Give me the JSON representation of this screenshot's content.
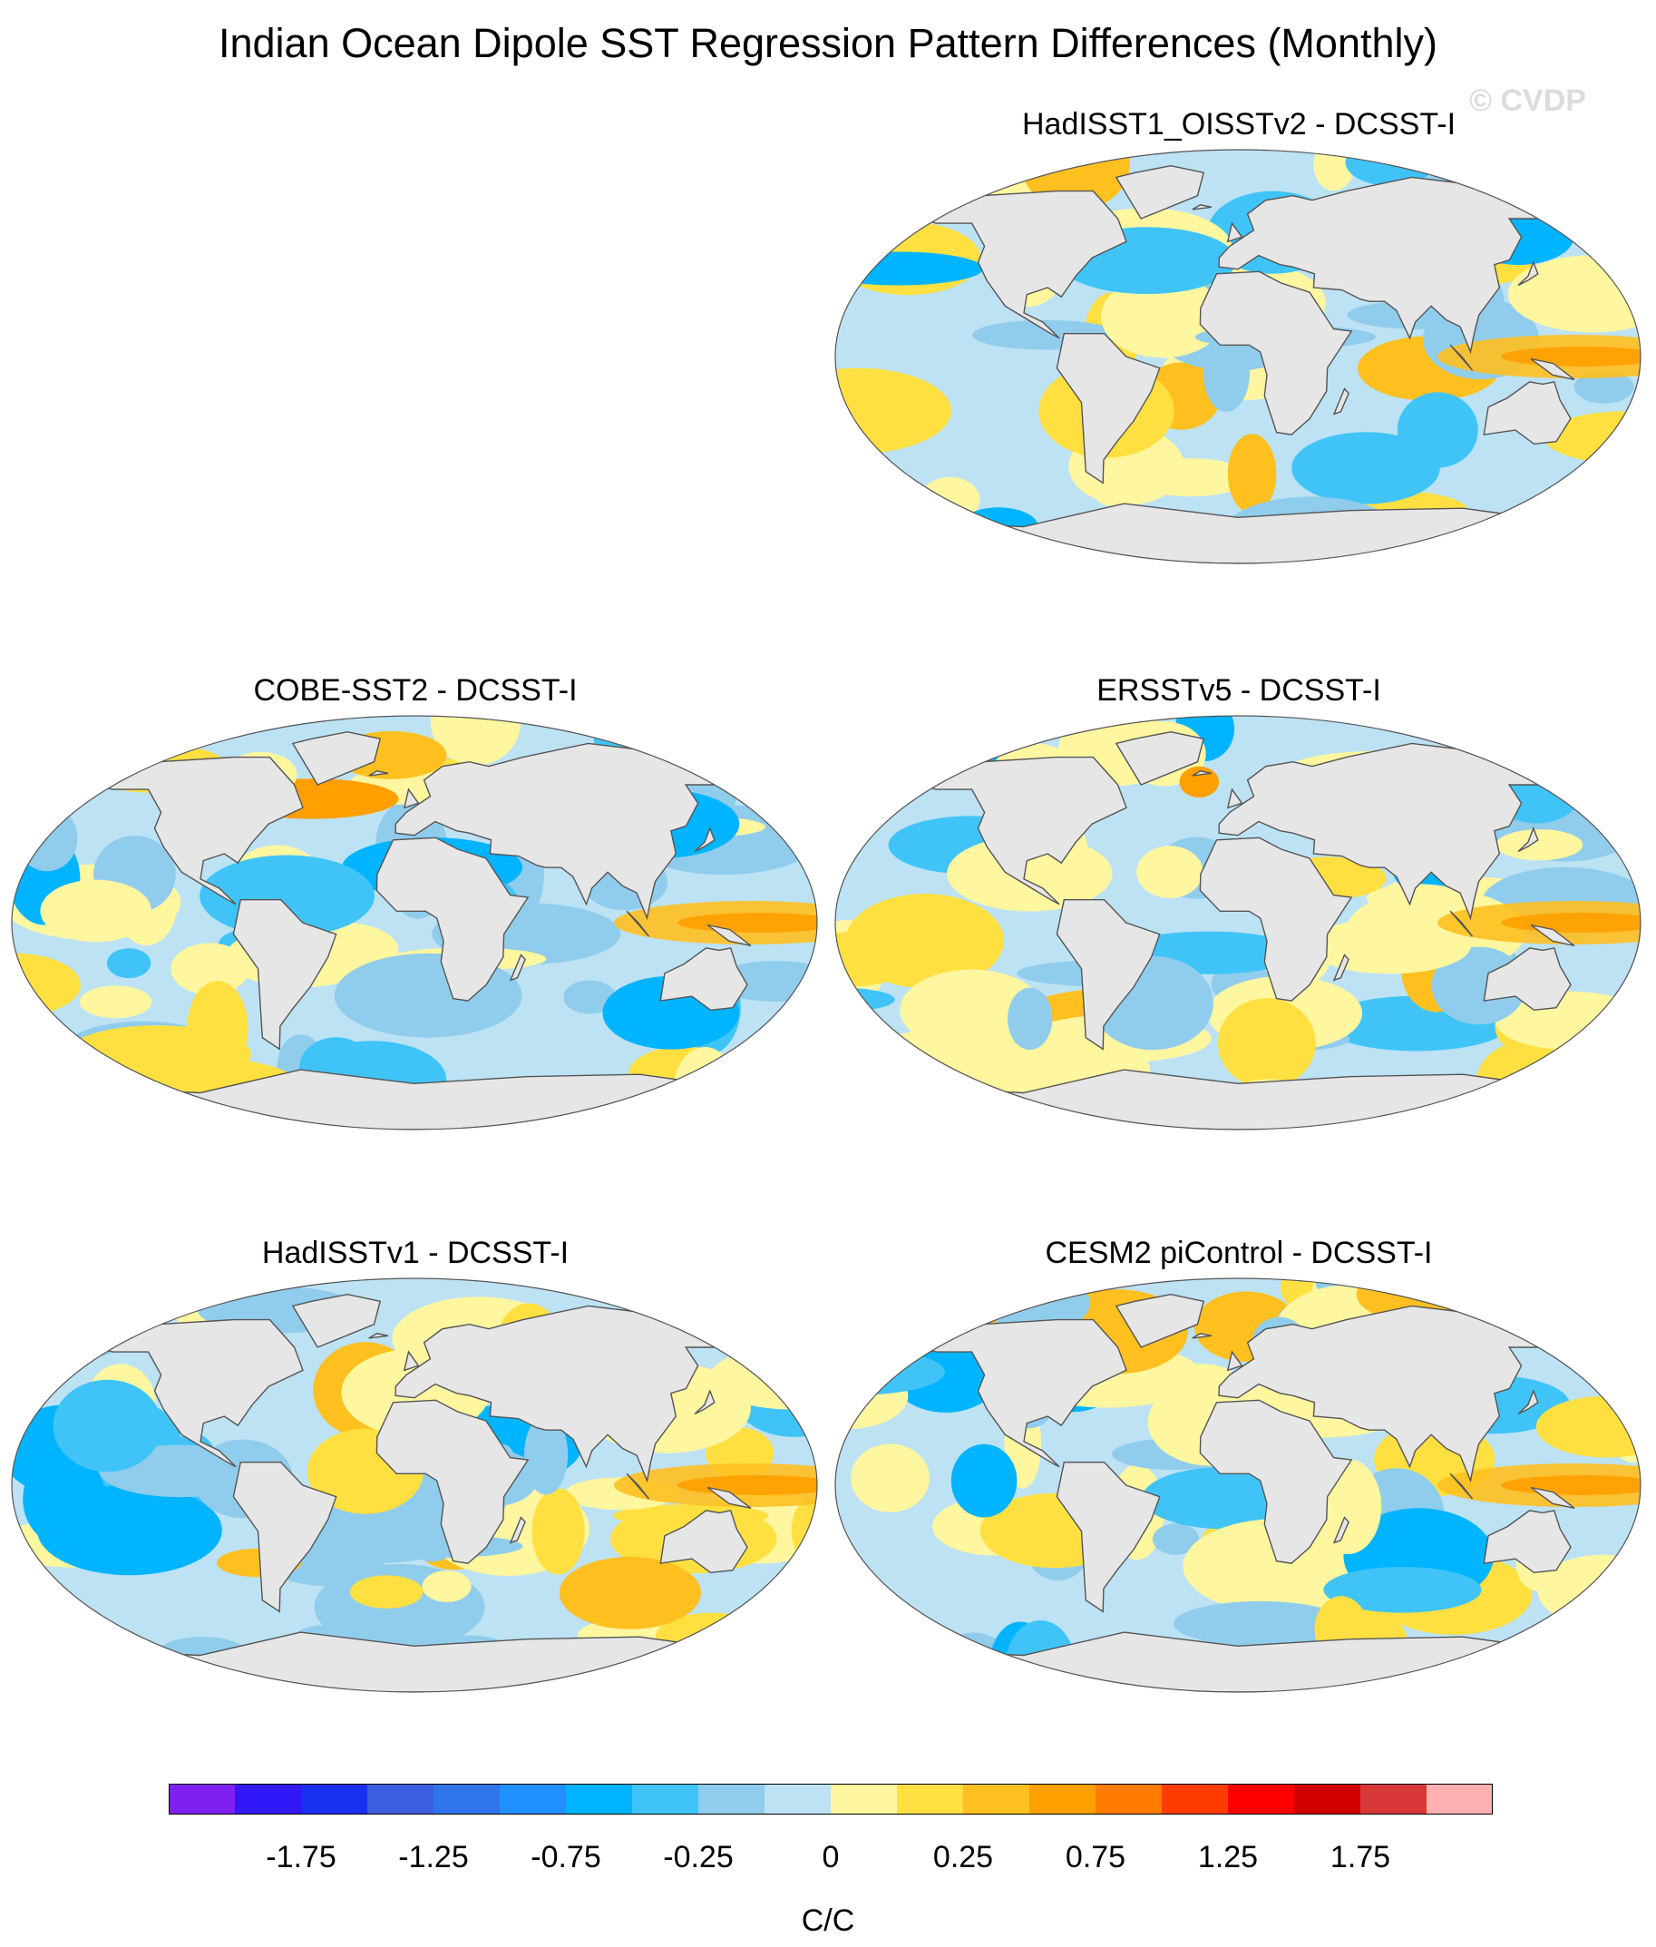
{
  "title": "Indian Ocean Dipole SST Regression Pattern Differences (Monthly)",
  "watermark": "© CVDP",
  "chart_data": {
    "type": "heatmap",
    "projection": "Robinson",
    "panels": [
      {
        "title": "HadISST1_OISSTv2 - DCSST-I",
        "position": "top-right"
      },
      {
        "title": "COBE-SST2 - DCSST-I",
        "position": "middle-left"
      },
      {
        "title": "ERSSTv5 - DCSST-I",
        "position": "middle-right"
      },
      {
        "title": "HadISSTv1 - DCSST-I",
        "position": "bottom-left"
      },
      {
        "title": "CESM2 piControl - DCSST-I",
        "position": "bottom-right"
      }
    ],
    "colorbar": {
      "label": "C/C",
      "tick_labels": [
        "-1.75",
        "-1.25",
        "-0.75",
        "-0.25",
        "0",
        "0.25",
        "0.75",
        "1.25",
        "1.75"
      ],
      "levels": [
        -2.0,
        -1.75,
        -1.5,
        -1.25,
        -1.0,
        -0.75,
        -0.5,
        -0.25,
        -0.1,
        0,
        0.1,
        0.25,
        0.5,
        0.75,
        1.0,
        1.25,
        1.5,
        1.75,
        2.0
      ],
      "colors": [
        "#8020f0",
        "#3018f8",
        "#1830f0",
        "#3a5ee0",
        "#2f74e8",
        "#1e90ff",
        "#00b4ff",
        "#40c4f8",
        "#90ccec",
        "#bce2f4",
        "#fff6a0",
        "#ffe040",
        "#ffc020",
        "#ffa000",
        "#ff7c00",
        "#ff3c00",
        "#ff0000",
        "#d00000",
        "#d83838",
        "#ffb0b0"
      ]
    }
  }
}
